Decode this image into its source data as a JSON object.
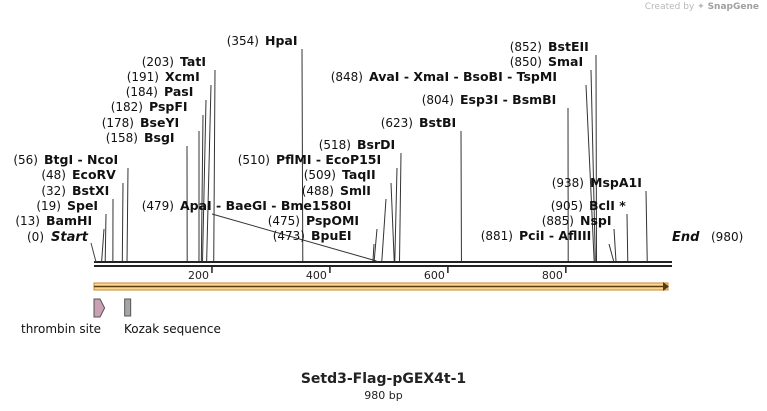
{
  "watermark": {
    "created_by": "Created by",
    "brand": "SnapGene"
  },
  "sequence": {
    "name": "Setd3-Flag-pGEX4t-1",
    "length_label": "980 bp",
    "length": 980
  },
  "ends": {
    "start_label": "Start",
    "start_pos": "(0)",
    "end_label": "End",
    "end_pos": "(980)"
  },
  "ticks": [
    200,
    400,
    600,
    800
  ],
  "features": [
    {
      "name": "thrombin site",
      "start": 0,
      "end": 18,
      "shape": "arrow",
      "color": "#c9a0b4"
    },
    {
      "name": "Kozak sequence",
      "start": 52,
      "end": 62,
      "shape": "box",
      "color": "#a6a6a6"
    }
  ],
  "sites": [
    {
      "text": "BamHI",
      "pos": "(13)",
      "cut": 13
    },
    {
      "text": "SpeI",
      "pos": "(19)",
      "cut": 19
    },
    {
      "text": "BstXI",
      "pos": "(32)",
      "cut": 32
    },
    {
      "text": "EcoRV",
      "pos": "(48)",
      "cut": 48
    },
    {
      "text": "BtgI  - NcoI",
      "pos": "(56)",
      "cut": 56
    },
    {
      "text": "BsgI",
      "pos": "(158)",
      "cut": 158
    },
    {
      "text": "BseYI",
      "pos": "(178)",
      "cut": 178
    },
    {
      "text": "PspFI",
      "pos": "(182)",
      "cut": 182
    },
    {
      "text": "PasI",
      "pos": "(184)",
      "cut": 184
    },
    {
      "text": "XcmI",
      "pos": "(191)",
      "cut": 191
    },
    {
      "text": "TatI",
      "pos": "(203)",
      "cut": 203
    },
    {
      "text": "HpaI",
      "pos": "(354)",
      "cut": 354
    },
    {
      "text": "ApaI  - BaeGI  - Bme1580I",
      "pos": "(479)",
      "cut": 479
    },
    {
      "text": "BpuEI",
      "pos": "(473)",
      "cut": 473
    },
    {
      "text": "PspOMI",
      "pos": "(475)",
      "cut": 475
    },
    {
      "text": "SmlI",
      "pos": "(488)",
      "cut": 488
    },
    {
      "text": "TaqII",
      "pos": "(509)",
      "cut": 509
    },
    {
      "text": "PflMI  - EcoP15I",
      "pos": "(510)",
      "cut": 510
    },
    {
      "text": "BsrDI",
      "pos": "(518)",
      "cut": 518
    },
    {
      "text": "BstBI",
      "pos": "(623)",
      "cut": 623
    },
    {
      "text": "Esp3I  - BsmBI",
      "pos": "(804)",
      "cut": 804
    },
    {
      "text": "AvaI  - XmaI  - BsoBI  - TspMI",
      "pos": "(848)",
      "cut": 848
    },
    {
      "text": "SmaI",
      "pos": "(850)",
      "cut": 850
    },
    {
      "text": "BstEII",
      "pos": "(852)",
      "cut": 852
    },
    {
      "text": "PciI  - AflIII",
      "pos": "(881)",
      "cut": 881
    },
    {
      "text": "NspI",
      "pos": "(885)",
      "cut": 885
    },
    {
      "text": "BclI *",
      "pos": "(905)",
      "cut": 905
    },
    {
      "text": "MspA1I",
      "pos": "(938)",
      "cut": 938
    }
  ]
}
